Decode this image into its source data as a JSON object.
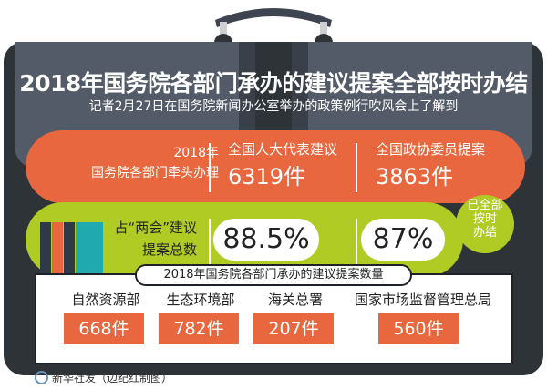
{
  "title": "2018年国务院各部门承办的建议提案全部按时办结",
  "subtitle": "记者2月27日在国务院新闻办公室举办的政策例行吹风会上了解到",
  "orange": {
    "label_line1": "2018年",
    "label_line2": "国务院各部门牵头办理",
    "npc_label": "全国人大代表建议",
    "npc_value": "6319件",
    "cppcc_label": "全国政协委员提案",
    "cppcc_value": "3863件"
  },
  "green": {
    "label_line1": "占“两会”建议",
    "label_line2": "提案总数",
    "npc_pct": "88.5%",
    "cppcc_pct": "87%",
    "badge": [
      "已全部",
      "按时",
      "办结"
    ]
  },
  "bottom": {
    "title": "2018年国务院各部门承办的建议提案数量",
    "items": [
      {
        "dept": "自然资源部",
        "value": "668件"
      },
      {
        "dept": "生态环境部",
        "value": "782件"
      },
      {
        "dept": "海关总署",
        "value": "207件"
      },
      {
        "dept": "国家市场监督管理总局",
        "value": "560件"
      }
    ]
  },
  "footer": "新华社发（边纪红制图）",
  "colors": {
    "orange": "#e8673e",
    "green": "#b0cb23",
    "dark": "#2e3338",
    "panel": "#545b68"
  }
}
